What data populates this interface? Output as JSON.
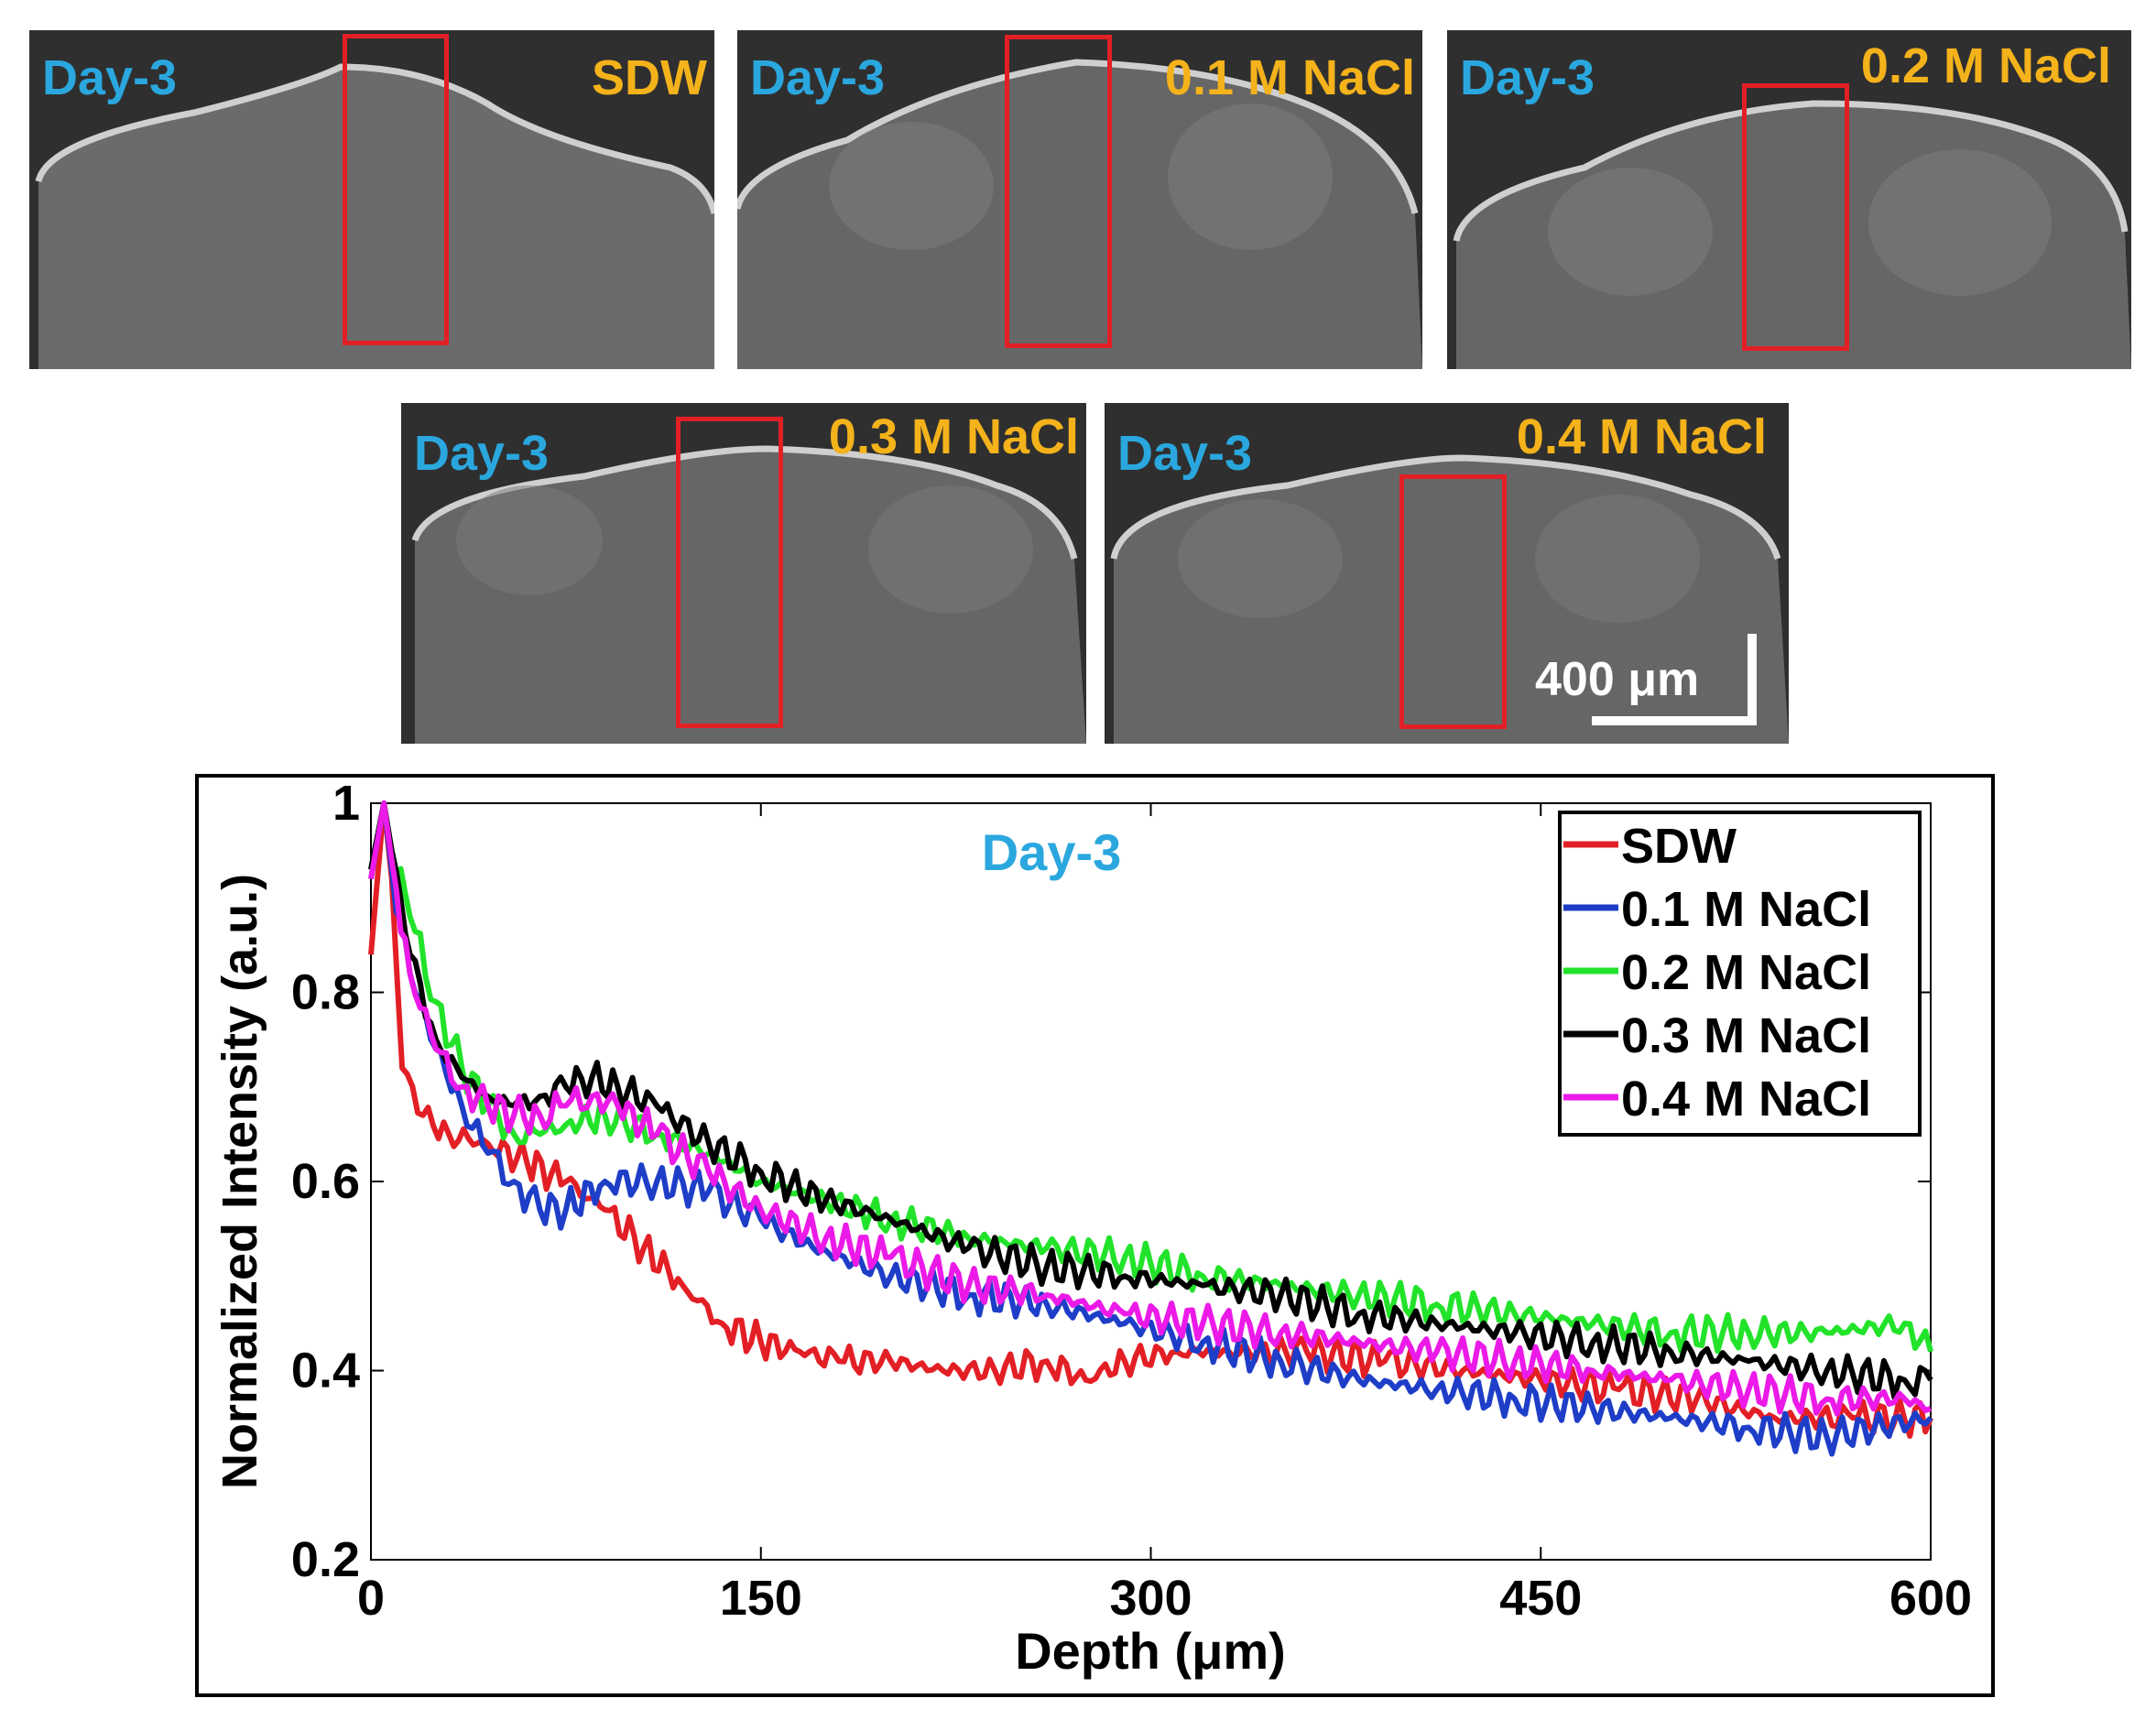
{
  "panels": [
    {
      "day": "Day-3",
      "condition": "SDW"
    },
    {
      "day": "Day-3",
      "condition": "0.1 M NaCl"
    },
    {
      "day": "Day-3",
      "condition": "0.2 M NaCl"
    },
    {
      "day": "Day-3",
      "condition": "0.3 M NaCl"
    },
    {
      "day": "Day-3",
      "condition": "0.4 M NaCl"
    }
  ],
  "scale_bar": {
    "label": "400 μm"
  },
  "colors": {
    "day_label": "#2aa7de",
    "condition_label": "#f4b21b",
    "roi": "#e31f26"
  },
  "chart_data": {
    "type": "line",
    "title": "Day-3",
    "xlabel": "Depth (μm)",
    "ylabel": "Normalized Intensity (a.u.)",
    "xlim": [
      0,
      600
    ],
    "ylim": [
      0.2,
      1
    ],
    "xticks": [
      0,
      150,
      300,
      450,
      600
    ],
    "xtick_labels": [
      "0",
      "150",
      "300",
      "450",
      "600"
    ],
    "yticks": [
      0.2,
      0.4,
      0.6,
      0.8,
      1
    ],
    "ytick_labels": [
      "0.2",
      "0.4",
      "0.6",
      "0.8",
      "1"
    ],
    "legend_position": "top-right",
    "series": [
      {
        "name": "SDW",
        "color": "#e31f26",
        "x": [
          0,
          5,
          8,
          12,
          20,
          30,
          45,
          60,
          75,
          90,
          105,
          120,
          135,
          150,
          165,
          180,
          200,
          220,
          240,
          260,
          275,
          290,
          310,
          330,
          360,
          390,
          420,
          450,
          480,
          510,
          540,
          570,
          600
        ],
        "y": [
          0.84,
          1.0,
          0.92,
          0.72,
          0.67,
          0.65,
          0.64,
          0.62,
          0.6,
          0.57,
          0.53,
          0.49,
          0.45,
          0.43,
          0.42,
          0.41,
          0.41,
          0.4,
          0.4,
          0.41,
          0.39,
          0.41,
          0.42,
          0.42,
          0.42,
          0.41,
          0.4,
          0.39,
          0.38,
          0.37,
          0.35,
          0.35,
          0.35
        ]
      },
      {
        "name": "0.1 M NaCl",
        "color": "#1e3ec8",
        "x": [
          0,
          5,
          8,
          15,
          25,
          35,
          45,
          55,
          65,
          75,
          90,
          110,
          130,
          150,
          170,
          200,
          230,
          260,
          290,
          320,
          350,
          380,
          410,
          440,
          470,
          500,
          530,
          560,
          600
        ],
        "y": [
          0.92,
          1.0,
          0.93,
          0.82,
          0.74,
          0.68,
          0.63,
          0.6,
          0.57,
          0.57,
          0.6,
          0.6,
          0.59,
          0.56,
          0.53,
          0.5,
          0.48,
          0.47,
          0.45,
          0.43,
          0.41,
          0.39,
          0.38,
          0.37,
          0.36,
          0.35,
          0.34,
          0.33,
          0.35
        ]
      },
      {
        "name": "0.2 M NaCl",
        "color": "#22e32a",
        "x": [
          0,
          5,
          8,
          15,
          25,
          35,
          45,
          55,
          65,
          75,
          90,
          110,
          130,
          150,
          175,
          200,
          230,
          260,
          290,
          320,
          350,
          380,
          410,
          440,
          470,
          500,
          530,
          560,
          590,
          600
        ],
        "y": [
          0.93,
          1.0,
          0.95,
          0.88,
          0.79,
          0.72,
          0.68,
          0.65,
          0.65,
          0.66,
          0.67,
          0.65,
          0.63,
          0.6,
          0.58,
          0.56,
          0.54,
          0.53,
          0.52,
          0.5,
          0.49,
          0.48,
          0.47,
          0.46,
          0.45,
          0.44,
          0.44,
          0.44,
          0.45,
          0.42
        ]
      },
      {
        "name": "0.3 M NaCl",
        "color": "#000000",
        "x": [
          0,
          5,
          8,
          15,
          25,
          35,
          45,
          55,
          65,
          75,
          85,
          95,
          110,
          130,
          150,
          175,
          200,
          230,
          260,
          290,
          320,
          350,
          380,
          410,
          440,
          470,
          500,
          530,
          560,
          590,
          600
        ],
        "y": [
          0.93,
          1.0,
          0.95,
          0.84,
          0.75,
          0.71,
          0.69,
          0.68,
          0.69,
          0.7,
          0.71,
          0.7,
          0.68,
          0.64,
          0.61,
          0.58,
          0.56,
          0.53,
          0.51,
          0.5,
          0.49,
          0.48,
          0.46,
          0.45,
          0.44,
          0.43,
          0.42,
          0.41,
          0.4,
          0.39,
          0.39
        ]
      },
      {
        "name": "0.4 M NaCl",
        "color": "#ec1ae8",
        "x": [
          0,
          5,
          8,
          15,
          25,
          35,
          45,
          55,
          65,
          75,
          85,
          95,
          110,
          130,
          150,
          175,
          200,
          230,
          260,
          290,
          320,
          350,
          380,
          410,
          440,
          470,
          500,
          530,
          560,
          590,
          600
        ],
        "y": [
          0.92,
          1.0,
          0.94,
          0.82,
          0.74,
          0.7,
          0.68,
          0.67,
          0.67,
          0.68,
          0.69,
          0.68,
          0.65,
          0.61,
          0.57,
          0.54,
          0.52,
          0.49,
          0.48,
          0.46,
          0.45,
          0.44,
          0.43,
          0.42,
          0.41,
          0.4,
          0.39,
          0.38,
          0.37,
          0.37,
          0.36
        ]
      }
    ]
  }
}
